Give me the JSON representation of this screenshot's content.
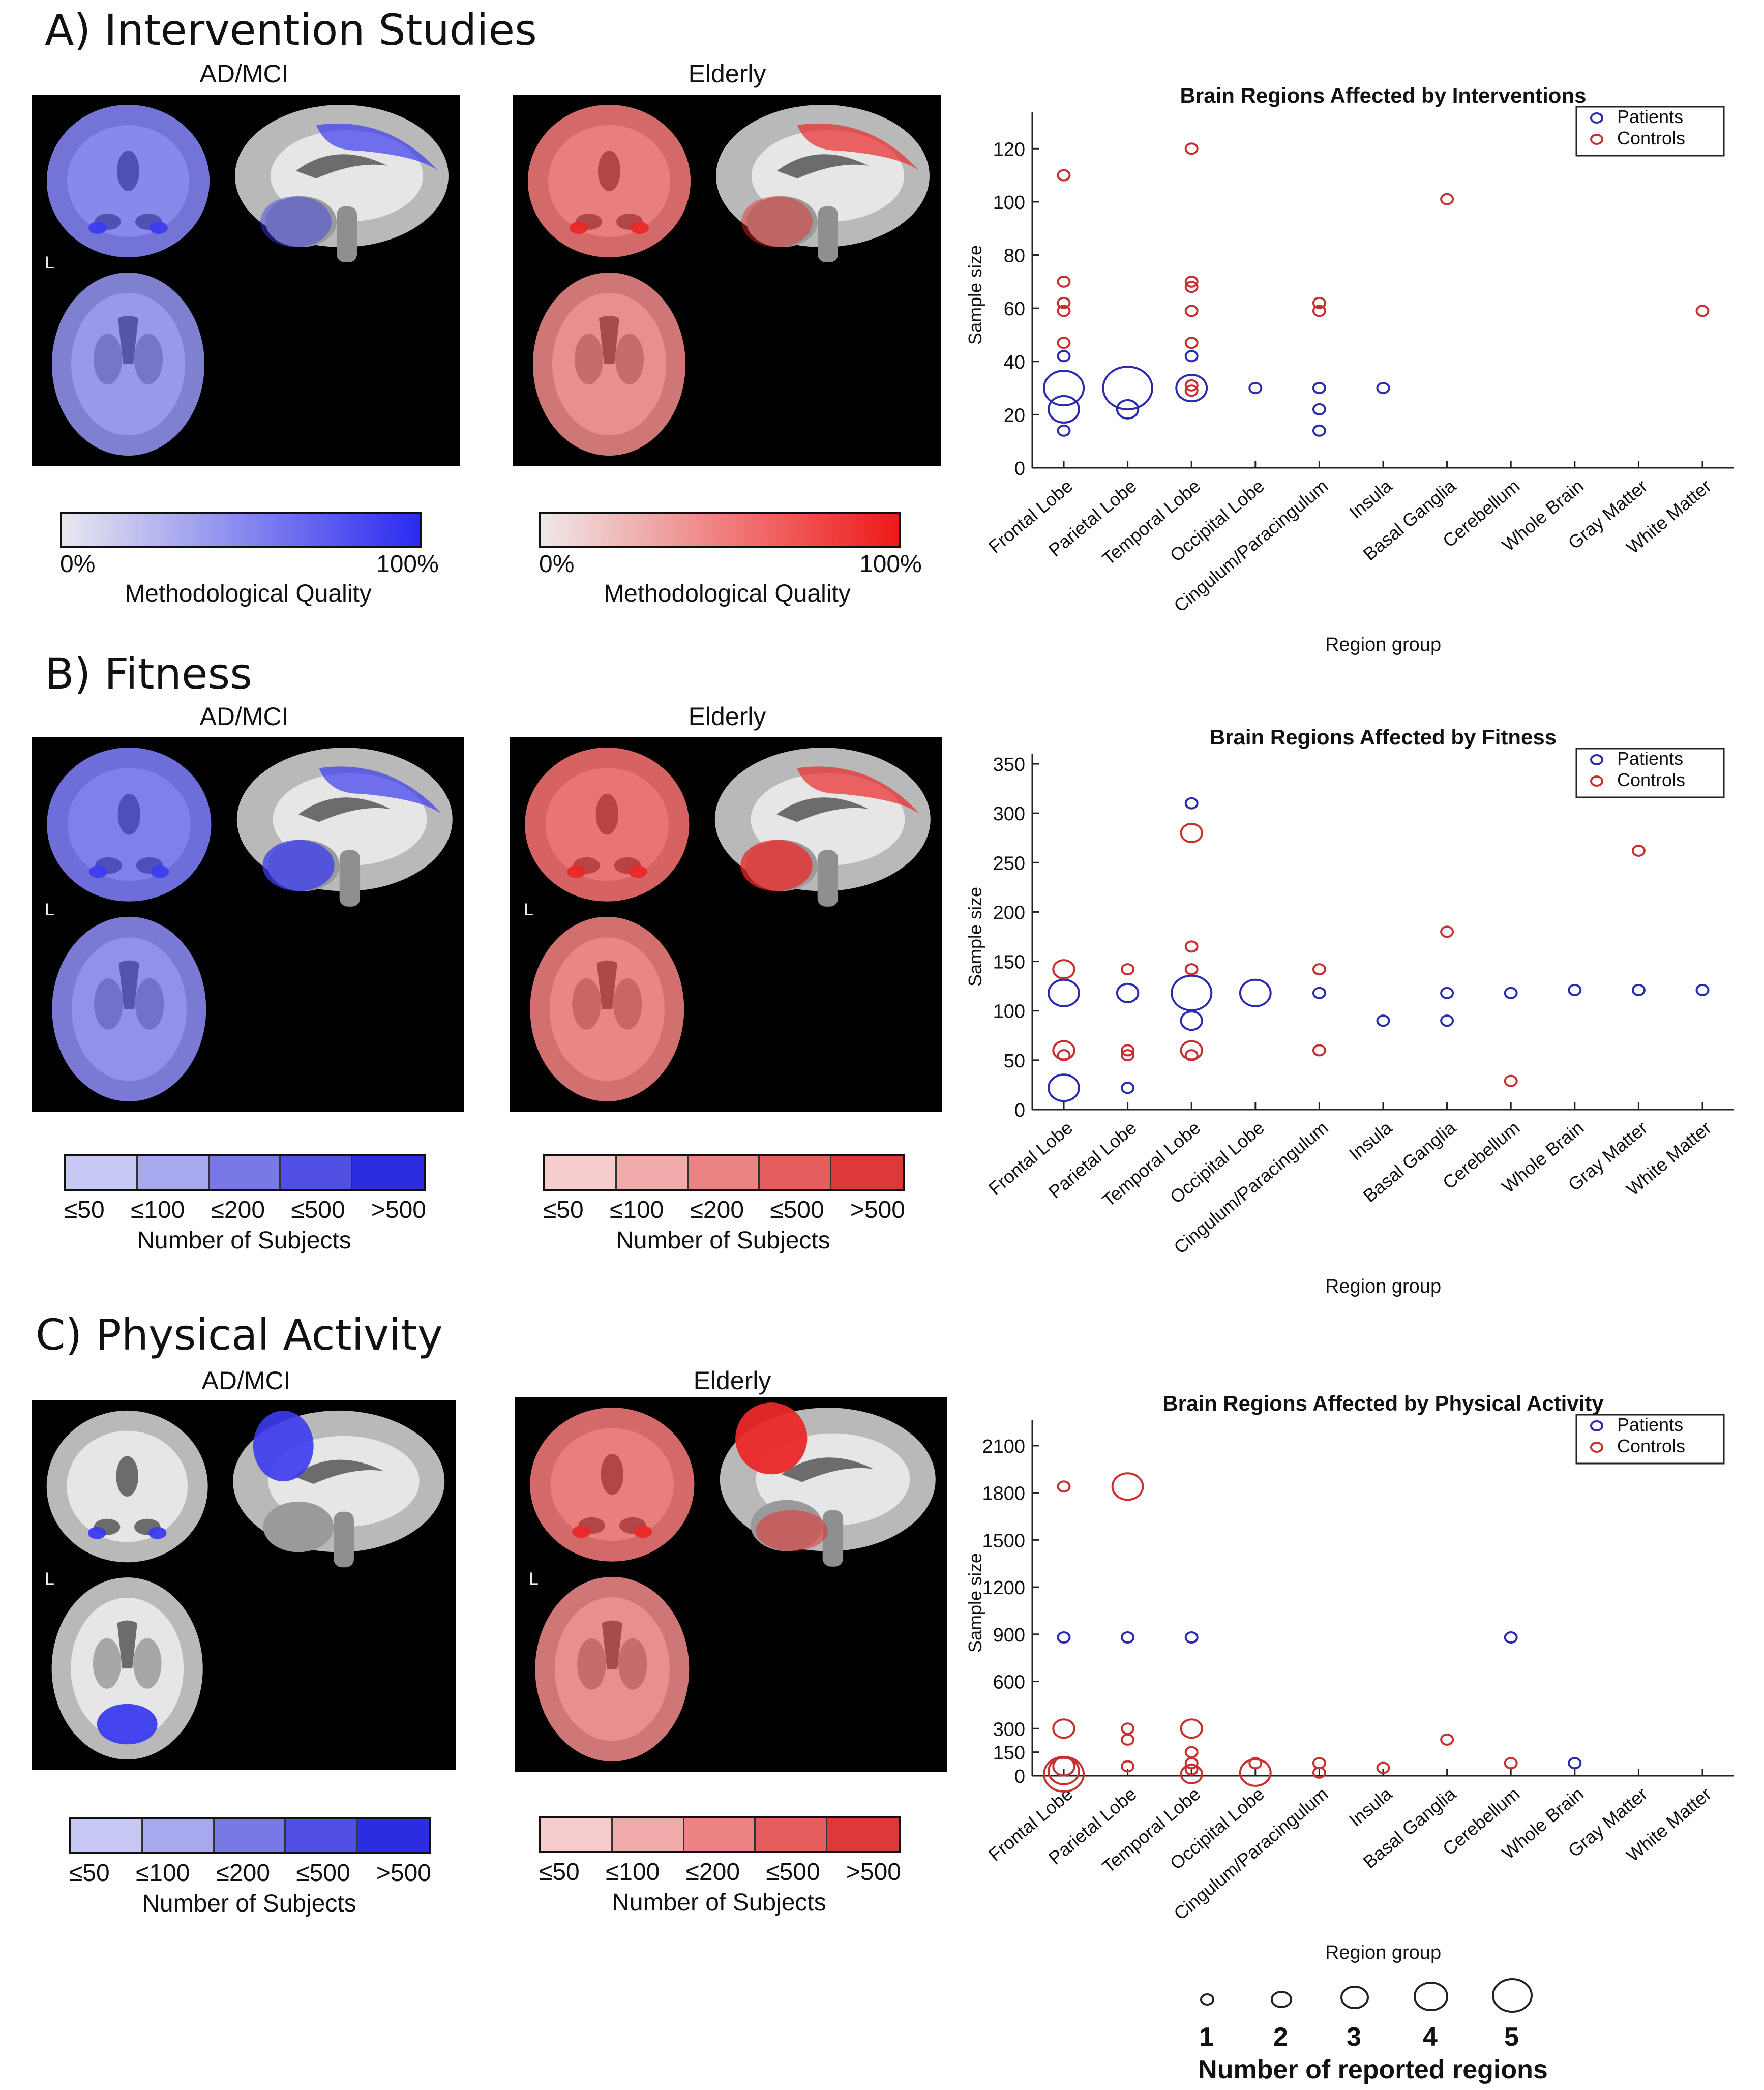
{
  "sections": [
    {
      "title": "A) Intervention Studies",
      "left_label": "AD/MCI",
      "right_label": "Elderly",
      "orientation_mark": "L",
      "left_colorbar": {
        "type": "gradient",
        "from": "#e8e8f0",
        "to": "#2a2af0",
        "min_label": "0%",
        "max_label": "100%",
        "title": "Methodological Quality"
      },
      "right_colorbar": {
        "type": "gradient",
        "from": "#f0e8e8",
        "to": "#f01818",
        "min_label": "0%",
        "max_label": "100%",
        "title": "Methodological Quality"
      }
    },
    {
      "title": "B) Fitness",
      "left_label": "AD/MCI",
      "right_label": "Elderly",
      "orientation_mark": "L",
      "left_colorbar": {
        "type": "discrete",
        "colors": [
          "#c8c8f4",
          "#a8a8ee",
          "#7878e6",
          "#5050e4",
          "#2c2ce0"
        ],
        "labels": [
          "≤50",
          "≤100",
          "≤200",
          "≤500",
          ">500"
        ],
        "title": "Number of Subjects"
      },
      "right_colorbar": {
        "type": "discrete",
        "colors": [
          "#f6cccc",
          "#f0aaaa",
          "#ea8484",
          "#e45e5e",
          "#de3838"
        ],
        "labels": [
          "≤50",
          "≤100",
          "≤200",
          "≤500",
          ">500"
        ],
        "title": "Number of Subjects"
      }
    },
    {
      "title": "C) Physical Activity",
      "left_label": "AD/MCI",
      "right_label": "Elderly",
      "orientation_mark": "L",
      "left_colorbar": {
        "type": "discrete",
        "colors": [
          "#c8c8f4",
          "#a8a8ee",
          "#7878e6",
          "#5050e4",
          "#2c2ce0"
        ],
        "labels": [
          "≤50",
          "≤100",
          "≤200",
          "≤500",
          ">500"
        ],
        "title": "Number of Subjects"
      },
      "right_colorbar": {
        "type": "discrete",
        "colors": [
          "#f6cccc",
          "#f0aaaa",
          "#ea8484",
          "#e45e5e",
          "#de3838"
        ],
        "labels": [
          "≤50",
          "≤100",
          "≤200",
          "≤500",
          ">500"
        ],
        "title": "Number of Subjects"
      }
    }
  ],
  "size_legend": {
    "labels": [
      "1",
      "2",
      "3",
      "4",
      "5"
    ],
    "title": "Number of reported regions"
  },
  "colors": {
    "patients": "#2b2bb0",
    "controls": "#c83030"
  },
  "chart_data": [
    {
      "type": "scatter",
      "title": "Brain Regions Affected by Interventions",
      "xlabel": "Region group",
      "ylabel": "Sample size",
      "categories": [
        "Frontal Lobe",
        "Parietal Lobe",
        "Temporal Lobe",
        "Occipital Lobe",
        "Cingulum/Paracingulum",
        "Insula",
        "Basal Ganglia",
        "Cerebellum",
        "Whole Brain",
        "Gray Matter",
        "White Matter"
      ],
      "ylim": [
        0,
        130
      ],
      "yticks": [
        0,
        20,
        40,
        60,
        80,
        100,
        120
      ],
      "legend": [
        "Patients",
        "Controls"
      ],
      "legend_position": "top-right",
      "series": [
        {
          "name": "Patients",
          "points": [
            {
              "x": "Frontal Lobe",
              "y": 14,
              "n": 1
            },
            {
              "x": "Frontal Lobe",
              "y": 22,
              "n": 3
            },
            {
              "x": "Frontal Lobe",
              "y": 30,
              "n": 4
            },
            {
              "x": "Frontal Lobe",
              "y": 42,
              "n": 1
            },
            {
              "x": "Parietal Lobe",
              "y": 22,
              "n": 2
            },
            {
              "x": "Parietal Lobe",
              "y": 30,
              "n": 5
            },
            {
              "x": "Temporal Lobe",
              "y": 30,
              "n": 3
            },
            {
              "x": "Temporal Lobe",
              "y": 42,
              "n": 1
            },
            {
              "x": "Occipital Lobe",
              "y": 30,
              "n": 1
            },
            {
              "x": "Cingulum/Paracingulum",
              "y": 14,
              "n": 1
            },
            {
              "x": "Cingulum/Paracingulum",
              "y": 22,
              "n": 1
            },
            {
              "x": "Cingulum/Paracingulum",
              "y": 30,
              "n": 1
            },
            {
              "x": "Insula",
              "y": 30,
              "n": 1
            }
          ]
        },
        {
          "name": "Controls",
          "points": [
            {
              "x": "Frontal Lobe",
              "y": 47,
              "n": 1
            },
            {
              "x": "Frontal Lobe",
              "y": 59,
              "n": 1
            },
            {
              "x": "Frontal Lobe",
              "y": 62,
              "n": 1
            },
            {
              "x": "Frontal Lobe",
              "y": 70,
              "n": 1
            },
            {
              "x": "Frontal Lobe",
              "y": 110,
              "n": 1
            },
            {
              "x": "Temporal Lobe",
              "y": 29,
              "n": 1
            },
            {
              "x": "Temporal Lobe",
              "y": 31,
              "n": 1
            },
            {
              "x": "Temporal Lobe",
              "y": 47,
              "n": 1
            },
            {
              "x": "Temporal Lobe",
              "y": 59,
              "n": 1
            },
            {
              "x": "Temporal Lobe",
              "y": 68,
              "n": 1
            },
            {
              "x": "Temporal Lobe",
              "y": 70,
              "n": 1
            },
            {
              "x": "Temporal Lobe",
              "y": 120,
              "n": 1
            },
            {
              "x": "Cingulum/Paracingulum",
              "y": 59,
              "n": 1
            },
            {
              "x": "Cingulum/Paracingulum",
              "y": 62,
              "n": 1
            },
            {
              "x": "Basal Ganglia",
              "y": 101,
              "n": 1
            },
            {
              "x": "White Matter",
              "y": 59,
              "n": 1
            }
          ]
        }
      ]
    },
    {
      "type": "scatter",
      "title": "Brain Regions Affected by Fitness",
      "xlabel": "Region group",
      "ylabel": "Sample size",
      "categories": [
        "Frontal Lobe",
        "Parietal Lobe",
        "Temporal Lobe",
        "Occipital Lobe",
        "Cingulum/Paracingulum",
        "Insula",
        "Basal Ganglia",
        "Cerebellum",
        "Whole Brain",
        "Gray Matter",
        "White Matter"
      ],
      "ylim": [
        0,
        350
      ],
      "yticks": [
        0,
        50,
        100,
        150,
        200,
        250,
        300,
        350
      ],
      "legend": [
        "Patients",
        "Controls"
      ],
      "legend_position": "top-right",
      "series": [
        {
          "name": "Patients",
          "points": [
            {
              "x": "Frontal Lobe",
              "y": 22,
              "n": 3
            },
            {
              "x": "Frontal Lobe",
              "y": 118,
              "n": 3
            },
            {
              "x": "Parietal Lobe",
              "y": 22,
              "n": 1
            },
            {
              "x": "Parietal Lobe",
              "y": 118,
              "n": 2
            },
            {
              "x": "Temporal Lobe",
              "y": 90,
              "n": 2
            },
            {
              "x": "Temporal Lobe",
              "y": 118,
              "n": 4
            },
            {
              "x": "Temporal Lobe",
              "y": 310,
              "n": 1
            },
            {
              "x": "Occipital Lobe",
              "y": 118,
              "n": 3
            },
            {
              "x": "Cingulum/Paracingulum",
              "y": 118,
              "n": 1
            },
            {
              "x": "Insula",
              "y": 90,
              "n": 1
            },
            {
              "x": "Basal Ganglia",
              "y": 90,
              "n": 1
            },
            {
              "x": "Basal Ganglia",
              "y": 118,
              "n": 1
            },
            {
              "x": "Cerebellum",
              "y": 118,
              "n": 1
            },
            {
              "x": "Whole Brain",
              "y": 121,
              "n": 1
            },
            {
              "x": "Gray Matter",
              "y": 121,
              "n": 1
            },
            {
              "x": "White Matter",
              "y": 121,
              "n": 1
            }
          ]
        },
        {
          "name": "Controls",
          "points": [
            {
              "x": "Frontal Lobe",
              "y": 55,
              "n": 1
            },
            {
              "x": "Frontal Lobe",
              "y": 60,
              "n": 2
            },
            {
              "x": "Frontal Lobe",
              "y": 142,
              "n": 2
            },
            {
              "x": "Parietal Lobe",
              "y": 55,
              "n": 1
            },
            {
              "x": "Parietal Lobe",
              "y": 60,
              "n": 1
            },
            {
              "x": "Parietal Lobe",
              "y": 142,
              "n": 1
            },
            {
              "x": "Temporal Lobe",
              "y": 55,
              "n": 1
            },
            {
              "x": "Temporal Lobe",
              "y": 60,
              "n": 2
            },
            {
              "x": "Temporal Lobe",
              "y": 142,
              "n": 1
            },
            {
              "x": "Temporal Lobe",
              "y": 165,
              "n": 1
            },
            {
              "x": "Temporal Lobe",
              "y": 280,
              "n": 2
            },
            {
              "x": "Cingulum/Paracingulum",
              "y": 60,
              "n": 1
            },
            {
              "x": "Cingulum/Paracingulum",
              "y": 142,
              "n": 1
            },
            {
              "x": "Basal Ganglia",
              "y": 180,
              "n": 1
            },
            {
              "x": "Cerebellum",
              "y": 29,
              "n": 1
            },
            {
              "x": "Gray Matter",
              "y": 262,
              "n": 1
            }
          ]
        }
      ]
    },
    {
      "type": "scatter",
      "title": "Brain Regions Affected by Physical Activity",
      "xlabel": "Region group",
      "ylabel": "Sample size",
      "categories": [
        "Frontal Lobe",
        "Parietal Lobe",
        "Temporal Lobe",
        "Occipital Lobe",
        "Cingulum/Paracingulum",
        "Insula",
        "Basal Ganglia",
        "Cerebellum",
        "Whole Brain",
        "Gray Matter",
        "White Matter"
      ],
      "ylim": [
        0,
        2200
      ],
      "yticks": [
        0,
        150,
        300,
        600,
        900,
        1200,
        1500,
        1800,
        2100
      ],
      "legend": [
        "Patients",
        "Controls"
      ],
      "legend_position": "top-right",
      "series": [
        {
          "name": "Patients",
          "points": [
            {
              "x": "Frontal Lobe",
              "y": 880,
              "n": 1
            },
            {
              "x": "Parietal Lobe",
              "y": 880,
              "n": 1
            },
            {
              "x": "Temporal Lobe",
              "y": 880,
              "n": 1
            },
            {
              "x": "Cerebellum",
              "y": 880,
              "n": 1
            },
            {
              "x": "Whole Brain",
              "y": 80,
              "n": 1
            }
          ]
        },
        {
          "name": "Controls",
          "points": [
            {
              "x": "Frontal Lobe",
              "y": 10,
              "n": 4
            },
            {
              "x": "Frontal Lobe",
              "y": 30,
              "n": 3
            },
            {
              "x": "Frontal Lobe",
              "y": 60,
              "n": 2
            },
            {
              "x": "Frontal Lobe",
              "y": 300,
              "n": 2
            },
            {
              "x": "Frontal Lobe",
              "y": 1840,
              "n": 1
            },
            {
              "x": "Parietal Lobe",
              "y": 60,
              "n": 1
            },
            {
              "x": "Parietal Lobe",
              "y": 230,
              "n": 1
            },
            {
              "x": "Parietal Lobe",
              "y": 300,
              "n": 1
            },
            {
              "x": "Parietal Lobe",
              "y": 1840,
              "n": 3
            },
            {
              "x": "Temporal Lobe",
              "y": 10,
              "n": 2
            },
            {
              "x": "Temporal Lobe",
              "y": 40,
              "n": 1
            },
            {
              "x": "Temporal Lobe",
              "y": 80,
              "n": 1
            },
            {
              "x": "Temporal Lobe",
              "y": 150,
              "n": 1
            },
            {
              "x": "Temporal Lobe",
              "y": 300,
              "n": 2
            },
            {
              "x": "Occipital Lobe",
              "y": 20,
              "n": 3
            },
            {
              "x": "Occipital Lobe",
              "y": 80,
              "n": 1
            },
            {
              "x": "Cingulum/Paracingulum",
              "y": 20,
              "n": 1
            },
            {
              "x": "Cingulum/Paracingulum",
              "y": 80,
              "n": 1
            },
            {
              "x": "Insula",
              "y": 50,
              "n": 1
            },
            {
              "x": "Basal Ganglia",
              "y": 230,
              "n": 1
            },
            {
              "x": "Cerebellum",
              "y": 80,
              "n": 1
            }
          ]
        }
      ]
    }
  ]
}
